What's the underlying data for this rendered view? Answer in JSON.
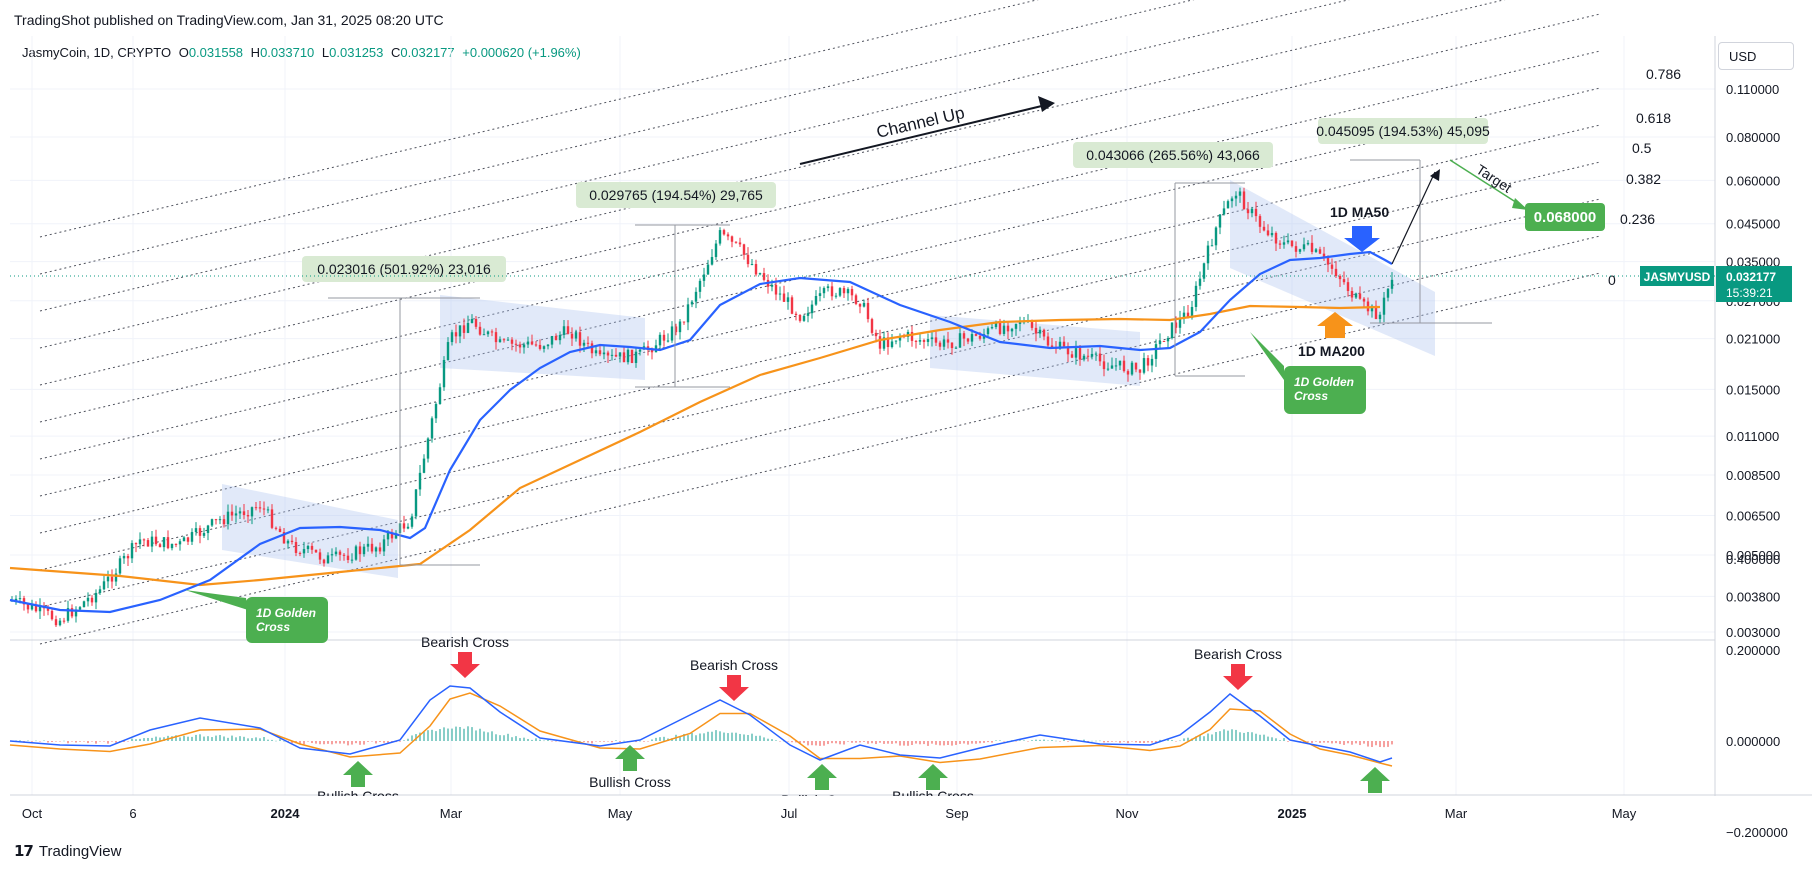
{
  "header": {
    "published": "TradingShot published on TradingView.com, Jan 31, 2025 08:20 UTC",
    "currency": "USD"
  },
  "ohlc": {
    "symbol": "JasmyCoin, 1D, CRYPTO",
    "o_label": "O",
    "o": "0.031558",
    "h_label": "H",
    "h": "0.033710",
    "l_label": "L",
    "l": "0.031253",
    "c_label": "C",
    "c": "0.032177",
    "change": "+0.000620 (+1.96%)"
  },
  "footer": {
    "brand": "TradingView"
  },
  "colors": {
    "ma50": "#2962ff",
    "ma200": "#f7931a",
    "up": "#089981",
    "down": "#f23645",
    "label_green": "#4caf50",
    "measure_bg": "#d9ead3"
  },
  "chart_data": {
    "type": "line",
    "price_axis": {
      "scale": "log",
      "ticks": [
        "0.110000",
        "0.080000",
        "0.060000",
        "0.045000",
        "0.035000",
        "0.027000",
        "0.021000",
        "0.015000",
        "0.011000",
        "0.008500",
        "0.006500",
        "0.005000",
        "0.003800",
        "0.003000"
      ]
    },
    "macd_axis": {
      "ticks": [
        "0.400000",
        "0.200000",
        "0.000000",
        "−0.200000"
      ]
    },
    "time_axis": [
      "Oct",
      "6",
      "2024",
      "Mar",
      "May",
      "Jul",
      "Sep",
      "Nov",
      "2025",
      "Mar",
      "May"
    ],
    "series": [
      {
        "name": "1D MA50",
        "color": "#2962ff"
      },
      {
        "name": "1D MA200",
        "color": "#f7931a"
      }
    ],
    "last_price": {
      "symbol": "JASMYUSD",
      "value": "0.032177",
      "countdown": "15:39:21"
    },
    "fib_levels": [
      "0.786",
      "0.618",
      "0.5",
      "0.382",
      "0.236",
      "0"
    ],
    "measurements": [
      "0.023016 (501.92%) 23,016",
      "0.029765 (194.54%) 29,765",
      "0.043066 (265.56%) 43,066",
      "0.045095 (194.53%) 45,095"
    ],
    "target": {
      "label": "Target",
      "value": "0.068000"
    },
    "annotations": {
      "channel": "Channel Up",
      "ma50": "1D MA50",
      "ma200": "1D MA200",
      "golden_cross_1": "1D Golden\nCross",
      "golden_cross_2": "1D Golden\nCross",
      "bearish_1": "Bearish Cross",
      "bearish_2": "Bearish Cross",
      "bearish_3": "Bearish Cross",
      "bullish_1": "Bullish Cross",
      "bullish_2": "Bullish Cross",
      "bullish_3": "Bullish Cross",
      "bullish_4": "Bullish Cross"
    }
  }
}
